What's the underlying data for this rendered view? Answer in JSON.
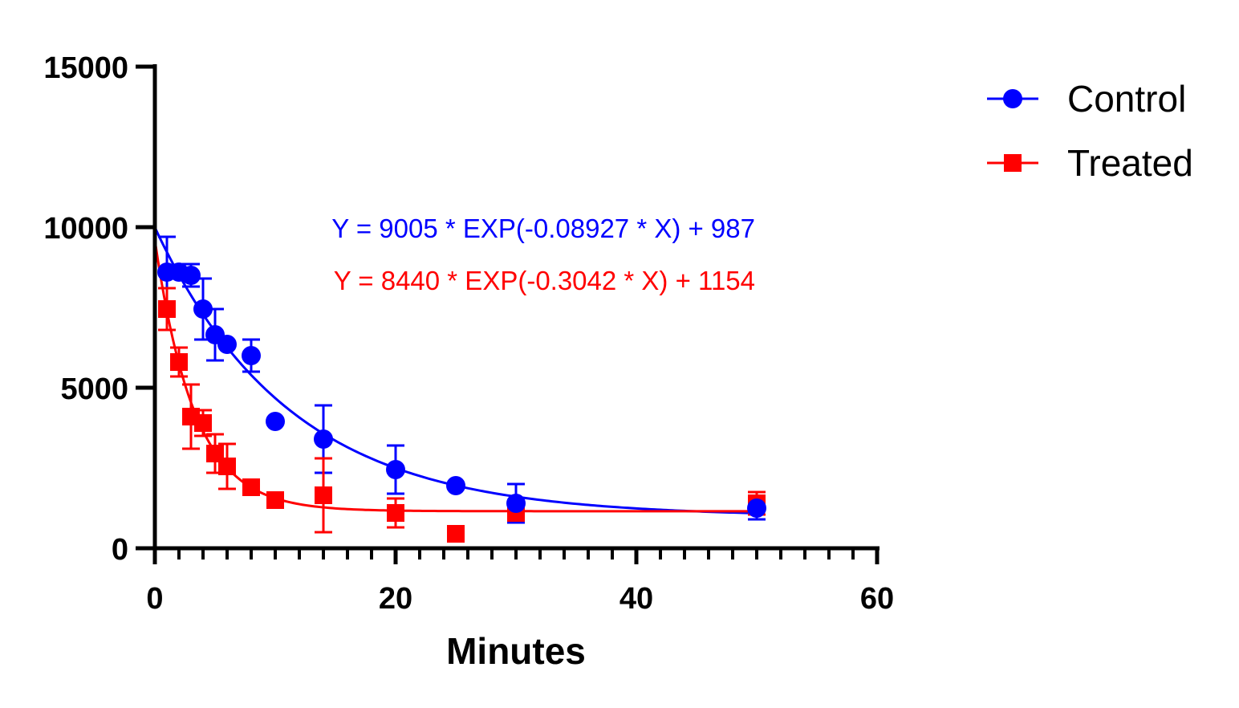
{
  "chart_data": {
    "type": "scatter",
    "title": "",
    "xlabel": "Minutes",
    "ylabel": "",
    "xlim": [
      0,
      60
    ],
    "ylim": [
      0,
      15000
    ],
    "x_ticks": [
      "0",
      "20",
      "40",
      "60"
    ],
    "y_ticks": [
      "0",
      "5000",
      "10000",
      "15000"
    ],
    "x_minor_step": 2,
    "grid": false,
    "legend_position": "top-right",
    "series": [
      {
        "name": "Control",
        "color": "#0000FF",
        "marker": "circle",
        "x": [
          1,
          2,
          3,
          4,
          5,
          6,
          8,
          10,
          14,
          20,
          25,
          30,
          50
        ],
        "y": [
          8600,
          8600,
          8500,
          7450,
          6650,
          6350,
          6000,
          3950,
          3400,
          2450,
          1950,
          1400,
          1250
        ],
        "err": [
          1100,
          0,
          350,
          950,
          800,
          0,
          500,
          0,
          1050,
          750,
          0,
          600,
          350
        ],
        "fit": {
          "a": 9005,
          "k": 0.08927,
          "c": 987
        },
        "equation": "Y = 9005 * EXP(-0.08927 * X) + 987"
      },
      {
        "name": "Treated",
        "color": "#FF0000",
        "marker": "square",
        "x": [
          1,
          2,
          3,
          4,
          5,
          6,
          8,
          10,
          14,
          20,
          25,
          30,
          50
        ],
        "y": [
          7450,
          5800,
          4100,
          3900,
          2950,
          2550,
          1900,
          1500,
          1650,
          1100,
          450,
          1100,
          1400
        ],
        "err": [
          650,
          450,
          1000,
          400,
          600,
          700,
          0,
          0,
          1150,
          450,
          0,
          150,
          350
        ],
        "fit": {
          "a": 8440,
          "k": 0.3042,
          "c": 1154
        },
        "equation": "Y = 8440 * EXP(-0.3042 * X) + 1154"
      }
    ]
  }
}
